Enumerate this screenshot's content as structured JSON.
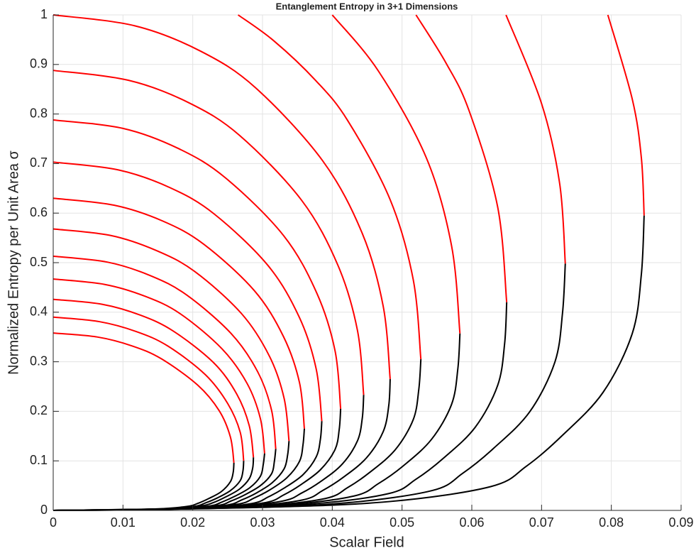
{
  "chart_data": {
    "type": "line",
    "title": "Entanglement Entropy in 3+1 Dimensions",
    "xlabel": "Scalar Field",
    "ylabel": "Normalized Entropy per Unit Area σ",
    "xlim": [
      0,
      0.09
    ],
    "ylim": [
      0,
      1
    ],
    "xticks": [
      0,
      0.01,
      0.02,
      0.03,
      0.04,
      0.05,
      0.06,
      0.07,
      0.08,
      0.09
    ],
    "yticks": [
      0,
      0.1,
      0.2,
      0.3,
      0.4,
      0.5,
      0.6,
      0.7,
      0.8,
      0.9,
      1
    ],
    "grid": true,
    "series": [
      {
        "color": "#ff0000",
        "x": [
          0,
          0.0063,
          0.0113,
          0.0155,
          0.0207,
          0.0238,
          0.0254,
          0.0259
        ],
        "values": [
          0.358,
          0.35,
          0.332,
          0.306,
          0.253,
          0.201,
          0.148,
          0.096
        ]
      },
      {
        "color": "#000000",
        "x": [
          0.0259,
          0.0258,
          0.0254,
          0.0241,
          0.0223,
          0.0207,
          0.0192,
          0.0148,
          0.0091,
          0
        ],
        "values": [
          0.096,
          0.077,
          0.058,
          0.038,
          0.024,
          0.014,
          0.008,
          0.003,
          0.001,
          0
        ]
      },
      {
        "color": "#ff0000",
        "x": [
          0,
          0.0066,
          0.0119,
          0.0164,
          0.0218,
          0.025,
          0.0268,
          0.0273
        ],
        "values": [
          0.39,
          0.381,
          0.361,
          0.332,
          0.274,
          0.216,
          0.158,
          0.1
        ]
      },
      {
        "color": "#000000",
        "x": [
          0.0273,
          0.0272,
          0.0268,
          0.0254,
          0.0235,
          0.0218,
          0.0202,
          0.0156,
          0.0096,
          0
        ],
        "values": [
          0.1,
          0.08,
          0.06,
          0.04,
          0.025,
          0.015,
          0.008,
          0.003,
          0.001,
          0
        ]
      },
      {
        "color": "#ff0000",
        "x": [
          0,
          0.007,
          0.0125,
          0.0172,
          0.023,
          0.0263,
          0.0281,
          0.0287
        ],
        "values": [
          0.426,
          0.416,
          0.394,
          0.362,
          0.298,
          0.235,
          0.171,
          0.107
        ]
      },
      {
        "color": "#000000",
        "x": [
          0.0287,
          0.0286,
          0.0281,
          0.0267,
          0.0247,
          0.023,
          0.0212,
          0.0164,
          0.01,
          0
        ],
        "values": [
          0.107,
          0.086,
          0.064,
          0.043,
          0.027,
          0.016,
          0.009,
          0.003,
          0.001,
          0
        ]
      },
      {
        "color": "#ff0000",
        "x": [
          0,
          0.0074,
          0.0132,
          0.0182,
          0.0242,
          0.0278,
          0.0297,
          0.0303
        ],
        "values": [
          0.467,
          0.456,
          0.432,
          0.397,
          0.326,
          0.256,
          0.185,
          0.115
        ]
      },
      {
        "color": "#000000",
        "x": [
          0.0303,
          0.0301,
          0.0297,
          0.0282,
          0.0261,
          0.0242,
          0.0224,
          0.0173,
          0.0106,
          0
        ],
        "values": [
          0.115,
          0.092,
          0.069,
          0.046,
          0.029,
          0.017,
          0.009,
          0.003,
          0.001,
          0
        ]
      },
      {
        "color": "#ff0000",
        "x": [
          0,
          0.0078,
          0.0139,
          0.0191,
          0.0255,
          0.0293,
          0.0313,
          0.0319
        ],
        "values": [
          0.513,
          0.501,
          0.474,
          0.435,
          0.357,
          0.28,
          0.202,
          0.124
        ]
      },
      {
        "color": "#000000",
        "x": [
          0.0319,
          0.0317,
          0.0313,
          0.0297,
          0.0274,
          0.0255,
          0.0236,
          0.0182,
          0.0112,
          0
        ],
        "values": [
          0.124,
          0.099,
          0.074,
          0.05,
          0.031,
          0.019,
          0.01,
          0.004,
          0.001,
          0
        ]
      },
      {
        "color": "#ff0000",
        "x": [
          0,
          0.0082,
          0.0147,
          0.0203,
          0.027,
          0.031,
          0.0331,
          0.0338
        ],
        "values": [
          0.568,
          0.555,
          0.525,
          0.482,
          0.397,
          0.311,
          0.226,
          0.14
        ]
      },
      {
        "color": "#000000",
        "x": [
          0.0338,
          0.0336,
          0.0331,
          0.0314,
          0.0291,
          0.027,
          0.025,
          0.0193,
          0.0118,
          0
        ],
        "values": [
          0.14,
          0.112,
          0.084,
          0.056,
          0.035,
          0.021,
          0.011,
          0.004,
          0.001,
          0
        ]
      },
      {
        "color": "#ff0000",
        "x": [
          0,
          0.0087,
          0.0157,
          0.0216,
          0.0288,
          0.033,
          0.0353,
          0.036
        ],
        "values": [
          0.63,
          0.616,
          0.584,
          0.537,
          0.444,
          0.351,
          0.258,
          0.165
        ]
      },
      {
        "color": "#000000",
        "x": [
          0.036,
          0.0358,
          0.0353,
          0.0335,
          0.031,
          0.0288,
          0.0266,
          0.0205,
          0.0126,
          0
        ],
        "values": [
          0.165,
          0.132,
          0.099,
          0.066,
          0.041,
          0.025,
          0.013,
          0.005,
          0.002,
          0
        ]
      },
      {
        "color": "#ff0000",
        "x": [
          0,
          0.0094,
          0.0168,
          0.0231,
          0.0308,
          0.0353,
          0.0377,
          0.0385
        ],
        "values": [
          0.703,
          0.687,
          0.651,
          0.598,
          0.494,
          0.389,
          0.285,
          0.18
        ]
      },
      {
        "color": "#000000",
        "x": [
          0.0385,
          0.0383,
          0.0377,
          0.0358,
          0.0331,
          0.0308,
          0.0285,
          0.0219,
          0.0135,
          0
        ],
        "values": [
          0.18,
          0.144,
          0.108,
          0.072,
          0.045,
          0.027,
          0.014,
          0.005,
          0.002,
          0
        ]
      },
      {
        "color": "#ff0000",
        "x": [
          0,
          0.01,
          0.018,
          0.0247,
          0.033,
          0.0378,
          0.0404,
          0.0412
        ],
        "values": [
          0.788,
          0.771,
          0.73,
          0.671,
          0.555,
          0.438,
          0.322,
          0.205
        ]
      },
      {
        "color": "#000000",
        "x": [
          0.0412,
          0.041,
          0.0404,
          0.0383,
          0.0354,
          0.033,
          0.0305,
          0.0235,
          0.0144,
          0
        ],
        "values": [
          0.205,
          0.164,
          0.123,
          0.082,
          0.051,
          0.031,
          0.016,
          0.006,
          0.002,
          0
        ]
      },
      {
        "color": "#ff0000",
        "x": [
          0,
          0.0108,
          0.0194,
          0.0267,
          0.0356,
          0.0408,
          0.0436,
          0.0445
        ],
        "values": [
          0.888,
          0.868,
          0.823,
          0.757,
          0.626,
          0.495,
          0.364,
          0.233
        ]
      },
      {
        "color": "#000000",
        "x": [
          0.0445,
          0.0443,
          0.0436,
          0.0414,
          0.0383,
          0.0356,
          0.0329,
          0.0254,
          0.0156,
          0
        ],
        "values": [
          0.233,
          0.186,
          0.14,
          0.093,
          0.058,
          0.035,
          0.019,
          0.007,
          0.002,
          0
        ]
      },
      {
        "color": "#ff0000",
        "x": [
          0,
          0.0117,
          0.0211,
          0.029,
          0.0386,
          0.0443,
          0.0473,
          0.0483
        ],
        "values": [
          1,
          0.978,
          0.927,
          0.853,
          0.706,
          0.559,
          0.412,
          0.265
        ]
      },
      {
        "color": "#000000",
        "x": [
          0.0483,
          0.0481,
          0.0473,
          0.0449,
          0.0415,
          0.0386,
          0.0357,
          0.0275,
          0.0169,
          0
        ],
        "values": [
          0.265,
          0.212,
          0.159,
          0.106,
          0.066,
          0.04,
          0.021,
          0.008,
          0.003,
          0
        ]
      },
      {
        "color": "#ff0000",
        "x": [
          0.0265,
          0.0316,
          0.0376,
          0.0422,
          0.0483,
          0.0516,
          0.0527
        ],
        "values": [
          1,
          0.948,
          0.868,
          0.787,
          0.627,
          0.466,
          0.305
        ]
      },
      {
        "color": "#000000",
        "x": [
          0.0527,
          0.0524,
          0.0516,
          0.049,
          0.0453,
          0.0422,
          0.039,
          0.03,
          0.0184,
          0
        ],
        "values": [
          0.305,
          0.244,
          0.183,
          0.122,
          0.076,
          0.046,
          0.024,
          0.009,
          0.003,
          0
        ]
      },
      {
        "color": "#ff0000",
        "x": [
          0.04,
          0.0466,
          0.0535,
          0.0571,
          0.0583
        ],
        "values": [
          1,
          0.887,
          0.711,
          0.534,
          0.357
        ]
      },
      {
        "color": "#000000",
        "x": [
          0.0583,
          0.058,
          0.0571,
          0.0542,
          0.0501,
          0.0466,
          0.0431,
          0.0332,
          0.0204,
          0
        ],
        "values": [
          0.357,
          0.286,
          0.214,
          0.143,
          0.089,
          0.054,
          0.029,
          0.011,
          0.004,
          0
        ]
      },
      {
        "color": "#ff0000",
        "x": [
          0.052,
          0.0563,
          0.0596,
          0.0637,
          0.065
        ],
        "values": [
          1,
          0.903,
          0.807,
          0.613,
          0.42
        ]
      },
      {
        "color": "#000000",
        "x": [
          0.065,
          0.0647,
          0.0637,
          0.0605,
          0.0559,
          0.052,
          0.0481,
          0.0371,
          0.0228,
          0
        ],
        "values": [
          0.42,
          0.336,
          0.252,
          0.168,
          0.105,
          0.063,
          0.034,
          0.013,
          0.004,
          0
        ]
      },
      {
        "color": "#ff0000",
        "x": [
          0.0649,
          0.07,
          0.0726,
          0.0734
        ],
        "values": [
          1,
          0.821,
          0.659,
          0.498
        ]
      },
      {
        "color": "#000000",
        "x": [
          0.0734,
          0.073,
          0.0719,
          0.0683,
          0.0631,
          0.0587,
          0.0543,
          0.0418,
          0.0257,
          0
        ],
        "values": [
          0.498,
          0.398,
          0.299,
          0.199,
          0.125,
          0.075,
          0.04,
          0.015,
          0.005,
          0
        ]
      },
      {
        "color": "#ff0000",
        "x": [
          0.0795,
          0.083,
          0.0843,
          0.0847
        ],
        "values": [
          1,
          0.83,
          0.712,
          0.595
        ]
      },
      {
        "color": "#000000",
        "x": [
          0.0847,
          0.0843,
          0.083,
          0.0788,
          0.0728,
          0.0678,
          0.0627,
          0.0483,
          0.0296,
          0
        ],
        "values": [
          0.595,
          0.476,
          0.357,
          0.238,
          0.149,
          0.089,
          0.048,
          0.018,
          0.006,
          0
        ]
      }
    ]
  }
}
